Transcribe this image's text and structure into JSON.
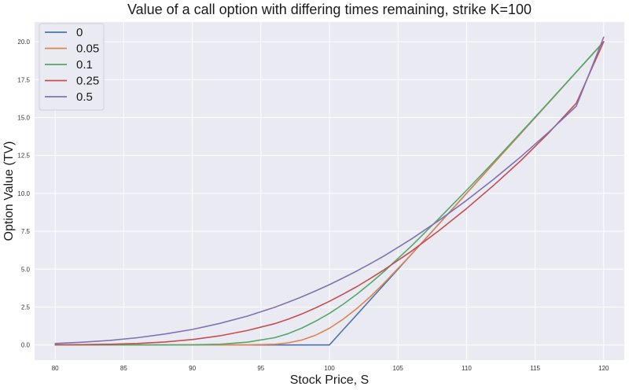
{
  "chart_data": {
    "type": "line",
    "title": "Value of a call option with differing times remaining, strike K=100",
    "xlabel": "Stock Price, S",
    "ylabel": "Option Value (TV)",
    "xlim": [
      78.5,
      121.5
    ],
    "ylim": [
      -1.0,
      21.3
    ],
    "x_ticks": [
      "80",
      "85",
      "90",
      "95",
      "100",
      "105",
      "110",
      "115",
      "120"
    ],
    "y_ticks": [
      "0.0",
      "2.5",
      "5.0",
      "7.5",
      "10.0",
      "12.5",
      "15.0",
      "17.5",
      "20.0"
    ],
    "grid": true,
    "legend_position": "top-left",
    "x": [
      80,
      82,
      84,
      86,
      88,
      90,
      92,
      94,
      96,
      97,
      98,
      99,
      100,
      101,
      102,
      103,
      104,
      106,
      108,
      110,
      112,
      114,
      116,
      118,
      120
    ],
    "series": [
      {
        "name": "0",
        "color": "#4c72b0",
        "values": [
          0,
          0,
          0,
          0,
          0,
          0,
          0,
          0,
          0,
          0,
          0,
          0,
          0,
          1,
          2,
          3,
          4,
          6,
          8,
          10,
          12,
          14,
          16,
          18,
          20
        ]
      },
      {
        "name": "0.05",
        "color": "#dd8452",
        "values": [
          0,
          0,
          0,
          0,
          0,
          0,
          0,
          0,
          0.05,
          0.14,
          0.33,
          0.65,
          1.1,
          1.7,
          2.4,
          3.2,
          4.1,
          6.0,
          8.0,
          10.0,
          12.0,
          14.0,
          16.0,
          18.0,
          20.0
        ]
      },
      {
        "name": "0.1",
        "color": "#55a868",
        "values": [
          0,
          0,
          0,
          0,
          0,
          0.01,
          0.05,
          0.18,
          0.48,
          0.75,
          1.12,
          1.57,
          2.08,
          2.68,
          3.35,
          4.08,
          4.86,
          6.55,
          8.35,
          10.2,
          12.1,
          14.05,
          16.02,
          18.01,
          20.0
        ]
      },
      {
        "name": "0.25",
        "color": "#c44e52",
        "values": [
          0.01,
          0.02,
          0.05,
          0.1,
          0.2,
          0.36,
          0.6,
          0.95,
          1.4,
          1.7,
          2.05,
          2.45,
          2.88,
          3.35,
          3.85,
          4.4,
          4.97,
          6.2,
          7.55,
          9.0,
          10.55,
          12.2,
          14.0,
          15.95,
          20.0
        ]
      },
      {
        "name": "0.5",
        "color": "#8172b2",
        "values": [
          0.1,
          0.18,
          0.3,
          0.48,
          0.72,
          1.02,
          1.42,
          1.9,
          2.48,
          2.82,
          3.18,
          3.57,
          3.98,
          4.42,
          4.88,
          5.37,
          5.88,
          7.0,
          8.22,
          9.54,
          10.95,
          12.45,
          14.05,
          15.75,
          20.3
        ]
      }
    ]
  }
}
